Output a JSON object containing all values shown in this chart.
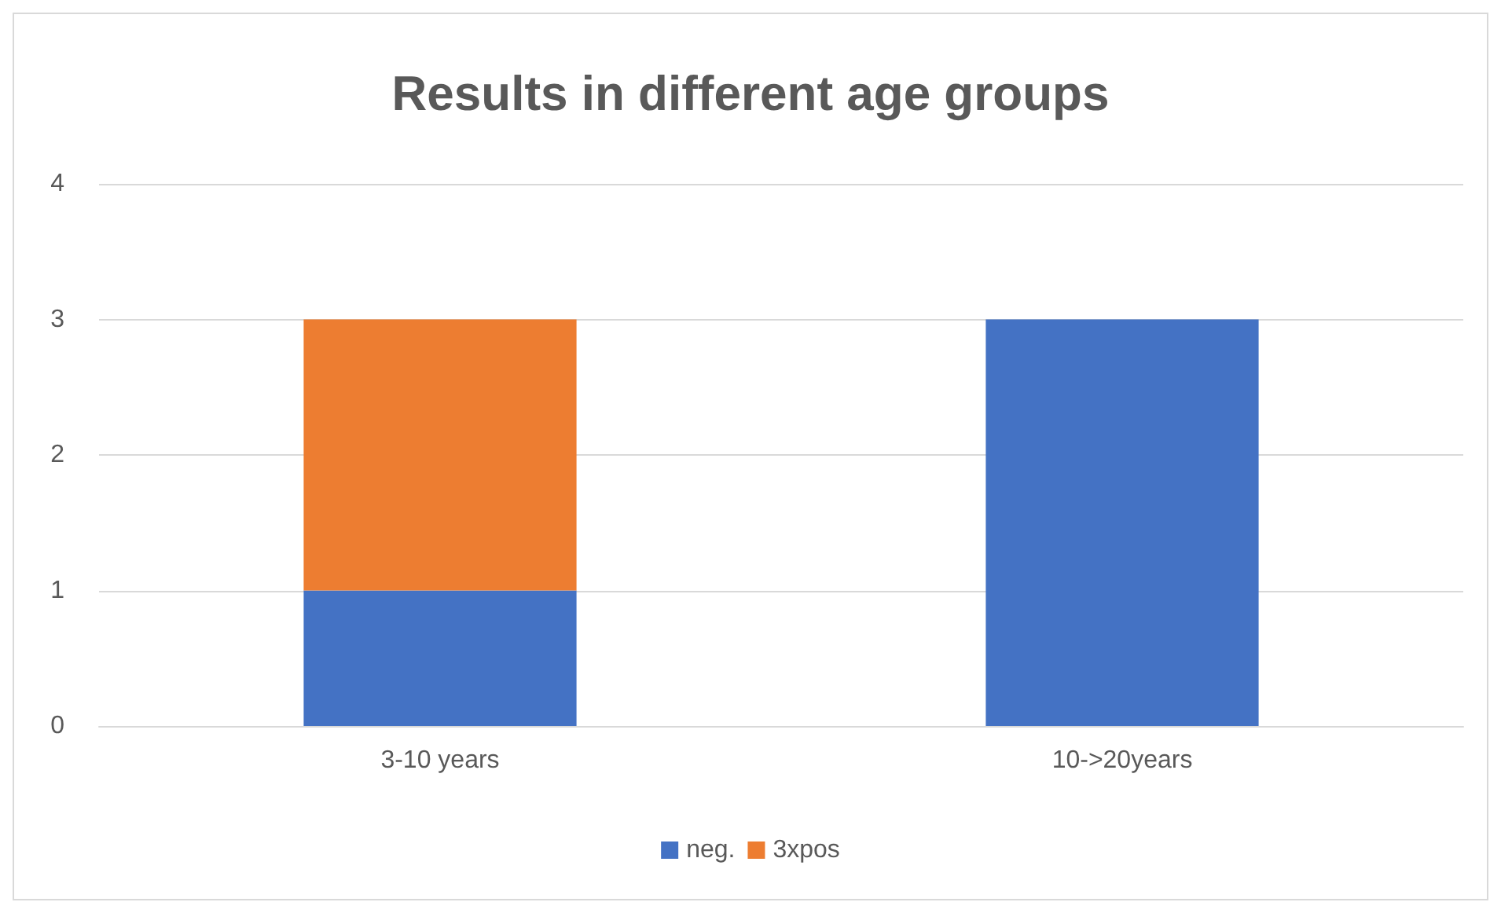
{
  "chart_data": {
    "type": "bar",
    "title": "Results in different age groups",
    "categories": [
      "3-10 years",
      "10->20years"
    ],
    "series": [
      {
        "name": "neg.",
        "color": "#4472c4",
        "values": [
          1,
          3
        ]
      },
      {
        "name": "3xpos",
        "color": "#ed7d31",
        "values": [
          2,
          0
        ]
      }
    ],
    "stacked": true,
    "ylim": [
      0,
      4
    ],
    "yticks": [
      0,
      1,
      2,
      3,
      4
    ],
    "grid": "y",
    "legend": "bottom"
  }
}
